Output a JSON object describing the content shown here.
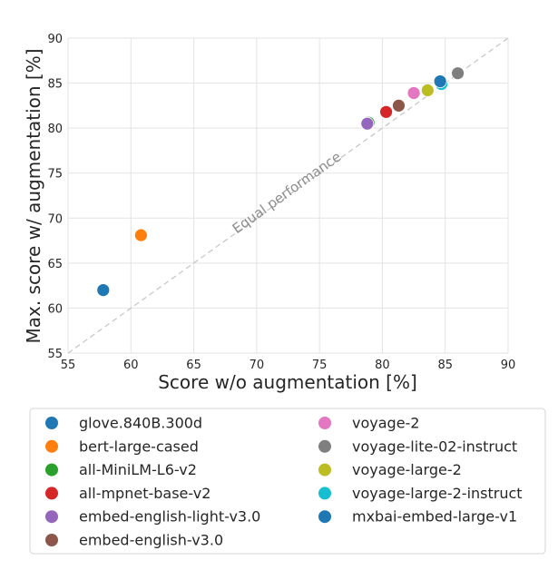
{
  "chart_data": {
    "type": "scatter",
    "title": "",
    "xlabel": "Score w/o augmentation [%]",
    "ylabel": "Max. score w/ augmentation [%]",
    "xlim": [
      55,
      90
    ],
    "ylim": [
      55,
      90
    ],
    "xticks": [
      55,
      60,
      65,
      70,
      75,
      80,
      85,
      90
    ],
    "yticks": [
      55,
      60,
      65,
      70,
      75,
      80,
      85,
      90
    ],
    "grid": true,
    "legend_position": "bottom",
    "diagonal_label": "Equal performance",
    "series": [
      {
        "name": "glove.840B.300d",
        "color": "#1f77b4",
        "x": 57.8,
        "y": 62.0
      },
      {
        "name": "bert-large-cased",
        "color": "#ff7f0e",
        "x": 60.8,
        "y": 68.1
      },
      {
        "name": "all-MiniLM-L6-v2",
        "color": "#2ca02c",
        "x": 78.9,
        "y": 80.6
      },
      {
        "name": "all-mpnet-base-v2",
        "color": "#d62728",
        "x": 80.3,
        "y": 81.8
      },
      {
        "name": "embed-english-light-v3.0",
        "color": "#9467bd",
        "x": 78.8,
        "y": 80.5
      },
      {
        "name": "embed-english-v3.0",
        "color": "#8c564b",
        "x": 81.3,
        "y": 82.5
      },
      {
        "name": "voyage-2",
        "color": "#e377c2",
        "x": 82.5,
        "y": 83.9
      },
      {
        "name": "voyage-lite-02-instruct",
        "color": "#7f7f7f",
        "x": 86.0,
        "y": 86.1
      },
      {
        "name": "voyage-large-2",
        "color": "#bcbd22",
        "x": 83.6,
        "y": 84.2
      },
      {
        "name": "voyage-large-2-instruct",
        "color": "#17becf",
        "x": 84.7,
        "y": 84.9
      },
      {
        "name": "mxbai-embed-large-v1",
        "color": "#1f77b4",
        "x": 84.6,
        "y": 85.2
      }
    ],
    "legend_columns": [
      [
        "glove.840B.300d",
        "bert-large-cased",
        "all-MiniLM-L6-v2",
        "all-mpnet-base-v2",
        "embed-english-light-v3.0",
        "embed-english-v3.0"
      ],
      [
        "voyage-2",
        "voyage-lite-02-instruct",
        "voyage-large-2",
        "voyage-large-2-instruct",
        "mxbai-embed-large-v1"
      ]
    ]
  }
}
